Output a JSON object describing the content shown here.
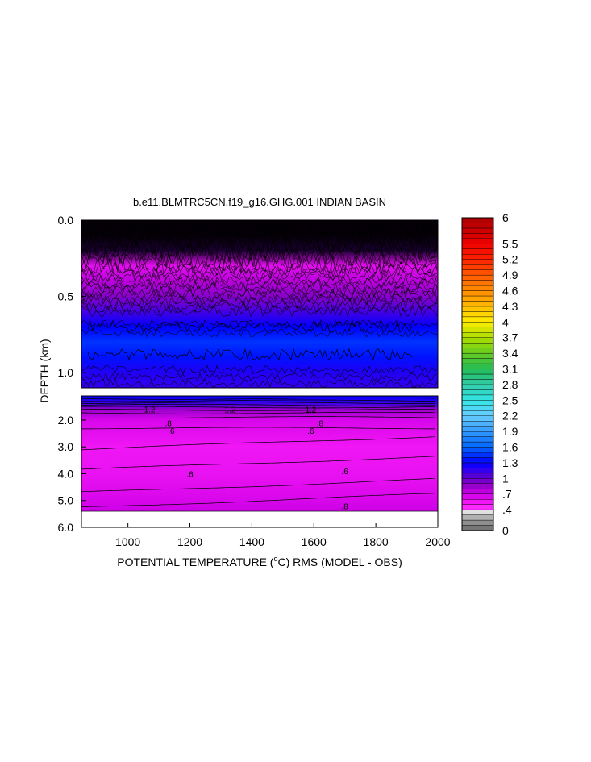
{
  "chart_data": {
    "type": "heatmap",
    "title": "b.e11.BLMTRC5CN.f19_g16.GHG.001 INDIAN BASIN",
    "xlabel_prefix": "POTENTIAL TEMPERATURE (",
    "xlabel_unit_sup": "o",
    "xlabel_suffix": "C) RMS (MODEL - OBS)",
    "ylabel": "DEPTH (km)",
    "x_range": [
      850,
      2000
    ],
    "x_ticks": [
      "1000",
      "1200",
      "1400",
      "1600",
      "1800",
      "2000"
    ],
    "x_tick_values": [
      1000,
      1200,
      1400,
      1600,
      1800,
      2000
    ],
    "upper_panel": {
      "y_range": [
        0.0,
        1.1
      ],
      "y_ticks": [
        "0.0",
        "0.5",
        "1.0"
      ],
      "y_tick_values": [
        0.0,
        0.5,
        1.0
      ],
      "depth_profile": [
        {
          "depth": 0.0,
          "value": 0.05
        },
        {
          "depth": 0.1,
          "value": 0.15
        },
        {
          "depth": 0.2,
          "value": 0.35
        },
        {
          "depth": 0.3,
          "value": 0.6
        },
        {
          "depth": 0.4,
          "value": 0.75
        },
        {
          "depth": 0.5,
          "value": 0.9
        },
        {
          "depth": 0.6,
          "value": 1.1
        },
        {
          "depth": 0.7,
          "value": 1.3
        },
        {
          "depth": 0.8,
          "value": 1.45
        },
        {
          "depth": 0.9,
          "value": 1.35
        },
        {
          "depth": 1.0,
          "value": 1.2
        },
        {
          "depth": 1.1,
          "value": 1.15
        }
      ]
    },
    "lower_panel": {
      "y_range": [
        1.1,
        6.0
      ],
      "y_ticks": [
        "2.0",
        "3.0",
        "4.0",
        "5.0",
        "6.0"
      ],
      "y_tick_values": [
        2.0,
        3.0,
        4.0,
        5.0,
        6.0
      ],
      "bottom_of_data_depth": 5.4,
      "depth_profile": [
        {
          "depth": 1.1,
          "value": 1.3
        },
        {
          "depth": 1.4,
          "value": 1.1
        },
        {
          "depth": 1.6,
          "value": 0.85
        },
        {
          "depth": 2.0,
          "value": 0.65
        },
        {
          "depth": 3.0,
          "value": 0.55
        },
        {
          "depth": 4.0,
          "value": 0.58
        },
        {
          "depth": 5.0,
          "value": 0.65
        },
        {
          "depth": 5.4,
          "value": 0.7
        }
      ],
      "contour_labels": [
        {
          "x": 1070,
          "depth": 1.6,
          "text": "1.2"
        },
        {
          "x": 1330,
          "depth": 1.6,
          "text": "1.2"
        },
        {
          "x": 1590,
          "depth": 1.6,
          "text": "1.2"
        },
        {
          "x": 1130,
          "depth": 2.1,
          "text": ".8"
        },
        {
          "x": 1620,
          "depth": 2.1,
          "text": ".8"
        },
        {
          "x": 1140,
          "depth": 2.4,
          "text": ".6"
        },
        {
          "x": 1590,
          "depth": 2.4,
          "text": ".6"
        },
        {
          "x": 1200,
          "depth": 4.0,
          "text": ".6"
        },
        {
          "x": 1700,
          "depth": 3.9,
          "text": ".6"
        },
        {
          "x": 1700,
          "depth": 5.2,
          "text": ".8"
        }
      ]
    },
    "colorbar": {
      "labels": [
        "6",
        "5.5",
        "5.2",
        "4.9",
        "4.6",
        "4.3",
        "4",
        "3.7",
        "3.4",
        "3.1",
        "2.8",
        "2.5",
        "2.2",
        "1.9",
        "1.6",
        "1.3",
        "1",
        ".7",
        ".4",
        "0"
      ],
      "label_values": [
        6,
        5.5,
        5.2,
        4.9,
        4.6,
        4.3,
        4,
        3.7,
        3.4,
        3.1,
        2.8,
        2.5,
        2.2,
        1.9,
        1.6,
        1.3,
        1,
        0.7,
        0.4,
        0
      ],
      "range": [
        0,
        6
      ]
    },
    "grid": false,
    "legend_placement": "right"
  }
}
